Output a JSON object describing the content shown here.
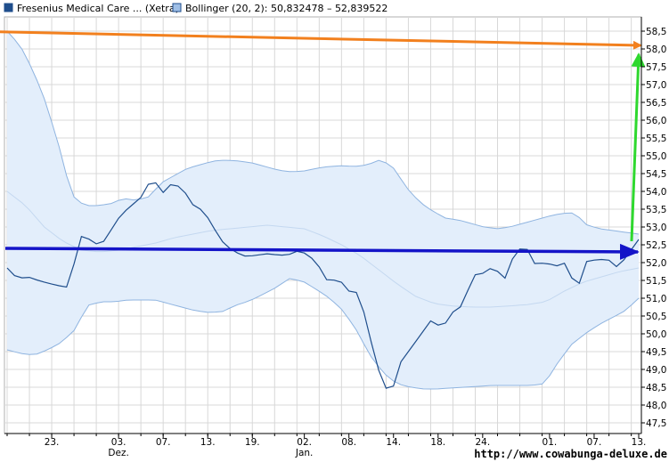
{
  "legend": {
    "primary_label": "Fresenius Medical Care ... (Xetra)",
    "bollinger_label": "Bollinger (20, 2): 50,832478 – 52,839522"
  },
  "watermark": "http://www.cowabunga-deluxe.de",
  "colors": {
    "price_line": "#1f4e8c",
    "band_fill": "#e3eefb",
    "band_edge": "#8fb4e0",
    "middle_line": "#c4d8f0",
    "orange_arrow": "#f2801e",
    "blue_arrow": "#1414c8",
    "green_arrow": "#2ed82e",
    "grid": "#d8d8d8",
    "axis": "#000000"
  },
  "chart_data": {
    "type": "line",
    "ylim": [
      47.2,
      58.9
    ],
    "y_ticks": [
      "47,5",
      "48,0",
      "48,5",
      "49,0",
      "49,5",
      "50,0",
      "50,5",
      "51,0",
      "51,5",
      "52,0",
      "52,5",
      "53,0",
      "53,5",
      "54,0",
      "54,5",
      "55,0",
      "55,5",
      "56,0",
      "56,5",
      "57,0",
      "57,5",
      "58,0",
      "58,5"
    ],
    "y_tick_values": [
      47.5,
      48.0,
      48.5,
      49.0,
      49.5,
      50.0,
      50.5,
      51.0,
      51.5,
      52.0,
      52.5,
      53.0,
      53.5,
      54.0,
      54.5,
      55.0,
      55.5,
      56.0,
      56.5,
      57.0,
      57.5,
      58.0,
      58.5
    ],
    "x_count": 86,
    "x_ticks": [
      {
        "i": 6,
        "label": "23.",
        "sub": ""
      },
      {
        "i": 15,
        "label": "03.",
        "sub": "Dez."
      },
      {
        "i": 21,
        "label": "07.",
        "sub": ""
      },
      {
        "i": 27,
        "label": "13.",
        "sub": ""
      },
      {
        "i": 33,
        "label": "19.",
        "sub": ""
      },
      {
        "i": 40,
        "label": "02.",
        "sub": "Jan."
      },
      {
        "i": 46,
        "label": "08.",
        "sub": ""
      },
      {
        "i": 52,
        "label": "14.",
        "sub": ""
      },
      {
        "i": 58,
        "label": "18.",
        "sub": ""
      },
      {
        "i": 64,
        "label": "24.",
        "sub": ""
      },
      {
        "i": 73,
        "label": "01.",
        "sub": ""
      },
      {
        "i": 79,
        "label": "07.",
        "sub": ""
      },
      {
        "i": 85,
        "label": "13.",
        "sub": ""
      }
    ],
    "series": [
      {
        "role": "price",
        "values": [
          51.85,
          51.55,
          51.6,
          51.5,
          51.42,
          51.35,
          51.3,
          52.75,
          52.65,
          52.45,
          52.9,
          53.35,
          53.6,
          53.85,
          54.4,
          53.95,
          54.25,
          54.05,
          53.6,
          53.45,
          52.95,
          52.5,
          52.3,
          52.18,
          52.2,
          52.25,
          52.22,
          52.2,
          52.32,
          52.25,
          51.95,
          51.45,
          51.55,
          51.2,
          51.15,
          49.95,
          48.85,
          48.22,
          49.2,
          49.6,
          50.0,
          50.4,
          50.15,
          50.6,
          50.8,
          51.65,
          51.7,
          51.9,
          51.5,
          52.25,
          52.5,
          51.95,
          52.0,
          51.9,
          52.0,
          51.2,
          52.05,
          52.08,
          52.1,
          51.85,
          52.25,
          52.65
        ]
      },
      {
        "role": "bollinger-upper",
        "values": [
          58.5,
          58.1,
          57.4,
          56.5,
          55.3,
          53.9,
          53.6,
          53.6,
          53.65,
          53.8,
          53.75,
          53.85,
          54.25,
          54.45,
          54.65,
          54.75,
          54.85,
          54.88,
          54.85,
          54.8,
          54.7,
          54.6,
          54.55,
          54.57,
          54.65,
          54.7,
          54.72,
          54.7,
          54.75,
          54.9,
          54.65,
          54.1,
          53.7,
          53.45,
          53.25,
          53.2,
          53.1,
          53.0,
          52.95,
          53.0,
          53.1,
          53.2,
          53.3,
          53.38,
          53.4,
          53.05,
          52.95,
          52.9,
          52.85,
          52.8
        ]
      },
      {
        "role": "bollinger-lower",
        "values": [
          49.55,
          49.45,
          49.4,
          49.55,
          49.75,
          50.1,
          50.8,
          50.9,
          50.9,
          50.95,
          50.95,
          50.95,
          50.85,
          50.75,
          50.65,
          50.6,
          50.62,
          50.8,
          50.92,
          51.1,
          51.3,
          51.55,
          51.48,
          51.25,
          51.0,
          50.65,
          50.1,
          49.4,
          48.9,
          48.6,
          48.5,
          48.45,
          48.45,
          48.48,
          48.5,
          48.52,
          48.55,
          48.55,
          48.55,
          48.55,
          48.6,
          49.2,
          49.7,
          50.0,
          50.25,
          50.45,
          50.65,
          51.0
        ]
      },
      {
        "role": "bollinger-middle",
        "values": [
          54.0,
          53.6,
          53.0,
          52.6,
          52.35,
          52.3,
          52.35,
          52.45,
          52.55,
          52.7,
          52.8,
          52.9,
          52.95,
          53.0,
          53.05,
          53.0,
          52.95,
          52.75,
          52.5,
          52.2,
          51.8,
          51.4,
          51.05,
          50.85,
          50.78,
          50.75,
          50.75,
          50.78,
          50.82,
          50.9,
          51.2,
          51.45,
          51.6,
          51.75,
          51.85
        ]
      }
    ]
  }
}
